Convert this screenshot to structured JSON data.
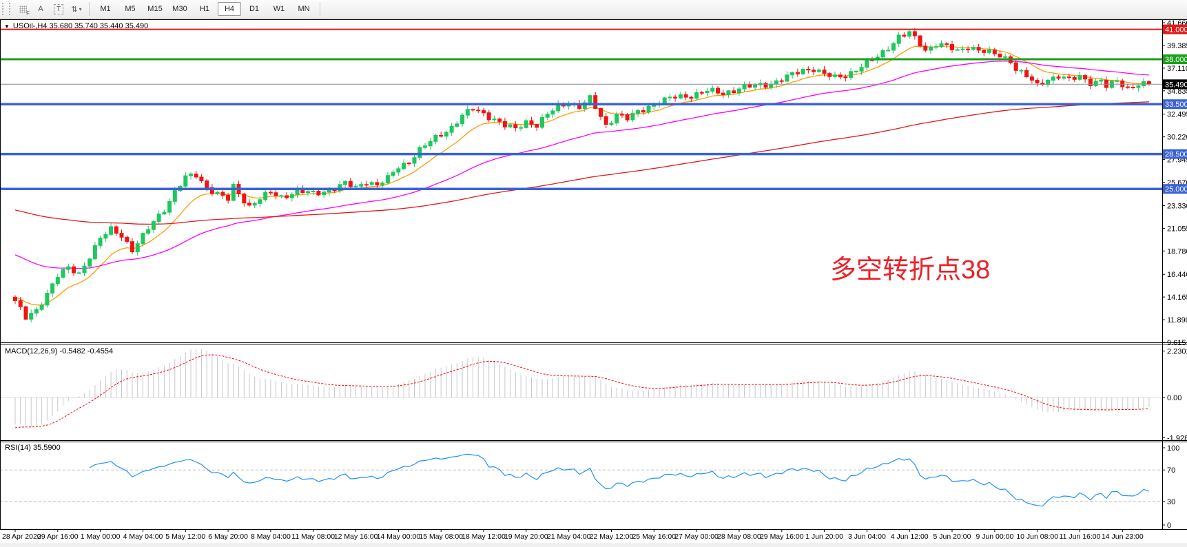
{
  "toolbar": {
    "icons": {
      "f_label": "F",
      "a_label": "A",
      "t_label": "T",
      "arrows_glyph": "⇅",
      "caret_glyph": "▾"
    },
    "timeframes": [
      "M1",
      "M5",
      "M15",
      "M30",
      "H1",
      "H4",
      "D1",
      "W1",
      "MN"
    ],
    "active_timeframe": "H4"
  },
  "chart_data": {
    "type": "candlestick",
    "title_marker": "▼",
    "title": "USOil-,H4  35.680 35.740 35.440 35.490",
    "symbol": "USOil-",
    "timeframe": "H4",
    "quote": {
      "open": "35.680",
      "high": "35.740",
      "low": "35.440",
      "close": "35.490"
    },
    "y_ticks": [
      "41.660",
      "39.385",
      "37.110",
      "34.835",
      "32.495",
      "30.220",
      "27.945",
      "25.670",
      "23.330",
      "21.055",
      "18.780",
      "16.440",
      "14.165",
      "11.890",
      "9.615"
    ],
    "x_labels": [
      "28 Apr 2020",
      "29 Apr 16:00",
      "1 May 00:00",
      "4 May 04:00",
      "5 May 12:00",
      "6 May 20:00",
      "8 May 04:00",
      "11 May 08:00",
      "12 May 16:00",
      "14 May 00:00",
      "15 May 08:00",
      "18 May 12:00",
      "19 May 20:00",
      "21 May 04:00",
      "22 May 12:00",
      "25 May 16:00",
      "27 May 00:00",
      "28 May 08:00",
      "29 May 16:00",
      "1 Jun 20:00",
      "3 Jun 04:00",
      "4 Jun 12:00",
      "5 Jun 20:00",
      "9 Jun 00:00",
      "10 Jun 08:00",
      "11 Jun 16:00",
      "14 Jun 23:00"
    ],
    "bars": 214,
    "close_anchors": [
      [
        0,
        13.8
      ],
      [
        2,
        12.0
      ],
      [
        4,
        12.8
      ],
      [
        6,
        14.6
      ],
      [
        8,
        16.3
      ],
      [
        10,
        17.0
      ],
      [
        12,
        16.5
      ],
      [
        14,
        18.3
      ],
      [
        16,
        20.0
      ],
      [
        18,
        20.9
      ],
      [
        20,
        20.4
      ],
      [
        22,
        18.9
      ],
      [
        24,
        20.2
      ],
      [
        26,
        21.7
      ],
      [
        28,
        23.0
      ],
      [
        30,
        24.7
      ],
      [
        32,
        26.1
      ],
      [
        34,
        26.4
      ],
      [
        36,
        25.2
      ],
      [
        38,
        24.5
      ],
      [
        40,
        23.9
      ],
      [
        41,
        25.2
      ],
      [
        43,
        23.9
      ],
      [
        44,
        23.3
      ],
      [
        46,
        24.0
      ],
      [
        48,
        24.6
      ],
      [
        50,
        24.2
      ],
      [
        53,
        24.8
      ],
      [
        56,
        24.5
      ],
      [
        59,
        24.9
      ],
      [
        62,
        25.5
      ],
      [
        64,
        25.1
      ],
      [
        66,
        25.8
      ],
      [
        68,
        25.4
      ],
      [
        70,
        26.0
      ],
      [
        72,
        27.2
      ],
      [
        74,
        27.8
      ],
      [
        76,
        28.9
      ],
      [
        78,
        29.7
      ],
      [
        80,
        30.5
      ],
      [
        82,
        31.2
      ],
      [
        84,
        32.3
      ],
      [
        86,
        33.0
      ],
      [
        88,
        32.6
      ],
      [
        90,
        32.0
      ],
      [
        92,
        31.3
      ],
      [
        94,
        31.0
      ],
      [
        96,
        31.8
      ],
      [
        98,
        31.4
      ],
      [
        100,
        32.4
      ],
      [
        102,
        33.3
      ],
      [
        104,
        33.7
      ],
      [
        106,
        33.2
      ],
      [
        108,
        34.0
      ],
      [
        110,
        32.3
      ],
      [
        111,
        31.4
      ],
      [
        113,
        32.5
      ],
      [
        115,
        32.0
      ],
      [
        117,
        32.7
      ],
      [
        119,
        33.3
      ],
      [
        121,
        33.7
      ],
      [
        124,
        34.2
      ],
      [
        127,
        34.4
      ],
      [
        130,
        34.8
      ],
      [
        133,
        34.6
      ],
      [
        136,
        35.1
      ],
      [
        139,
        35.3
      ],
      [
        142,
        35.6
      ],
      [
        145,
        36.2
      ],
      [
        148,
        36.9
      ],
      [
        150,
        37.1
      ],
      [
        152,
        36.5
      ],
      [
        154,
        36.1
      ],
      [
        156,
        36.4
      ],
      [
        158,
        37.0
      ],
      [
        160,
        37.6
      ],
      [
        162,
        38.2
      ],
      [
        164,
        39.2
      ],
      [
        166,
        40.3
      ],
      [
        168,
        40.6
      ],
      [
        170,
        39.5
      ],
      [
        171,
        38.9
      ],
      [
        173,
        39.6
      ],
      [
        175,
        39.3
      ],
      [
        177,
        38.7
      ],
      [
        179,
        39.3
      ],
      [
        181,
        39.0
      ],
      [
        183,
        38.6
      ],
      [
        185,
        38.3
      ],
      [
        187,
        37.9
      ],
      [
        188,
        37.1
      ],
      [
        190,
        36.3
      ],
      [
        192,
        35.3
      ],
      [
        194,
        36.0
      ],
      [
        196,
        36.4
      ],
      [
        198,
        35.9
      ],
      [
        200,
        36.2
      ],
      [
        202,
        35.7
      ],
      [
        204,
        35.9
      ],
      [
        205,
        35.3
      ],
      [
        207,
        35.7
      ],
      [
        209,
        35.1
      ],
      [
        211,
        35.6
      ],
      [
        213,
        35.49
      ]
    ],
    "candle_up_color": "#1fc75f",
    "candle_down_color": "#f01414",
    "hlines": [
      {
        "price": 41.0,
        "label": "41.000",
        "color": "#e21a1a",
        "width": 2
      },
      {
        "price": 38.0,
        "label": "38.000",
        "color": "#19a119",
        "width": 3
      },
      {
        "price": 33.5,
        "label": "33.500",
        "color": "#3a62d8",
        "width": 3.5
      },
      {
        "price": 28.5,
        "label": "28.500",
        "color": "#3a62d8",
        "width": 3.5
      },
      {
        "price": 25.0,
        "label": "25.000",
        "color": "#3a62d8",
        "width": 3.5
      }
    ],
    "current_price": {
      "value": 35.49,
      "label": "35.490",
      "line_color": "#8c8c8c",
      "box_color": "#000000"
    },
    "moving_averages": [
      {
        "name": "ma-fast",
        "period": 11,
        "seed": 14.2,
        "color": "#ff9c00"
      },
      {
        "name": "ma-mid",
        "period": 46,
        "seed": 18.6,
        "color": "#ff00ff"
      },
      {
        "name": "ma-slow",
        "period": 160,
        "seed": 23.0,
        "color": "#e21a1a"
      }
    ],
    "macd": {
      "label": "MACD(12,26,9) -0.5482 -0.4554",
      "macd_value": -0.5482,
      "signal_value": -0.4554,
      "ticks": [
        {
          "v": 2.2301,
          "label": "2.2301"
        },
        {
          "v": 0,
          "label": "0.00"
        },
        {
          "v": -1.9287,
          "label": "-1.9287"
        }
      ],
      "hist_color": "#c6c6c6",
      "signal_color": "#ff0000",
      "seeds": {
        "fast": 14.7,
        "slow": 16.0,
        "signal": -1.5
      }
    },
    "rsi": {
      "label": "RSI(14) 35.5900",
      "value": 35.59,
      "period": 14,
      "ticks": [
        {
          "v": 100,
          "label": "100"
        },
        {
          "v": 70,
          "label": "70"
        },
        {
          "v": 30,
          "label": "30"
        },
        {
          "v": 0,
          "label": "0"
        }
      ],
      "levels": [
        70,
        30
      ],
      "line_color": "#1e90ff",
      "level_color": "#bdbdbd"
    },
    "annotation": {
      "text": "多空转折点38",
      "color": "#ec2028"
    }
  }
}
